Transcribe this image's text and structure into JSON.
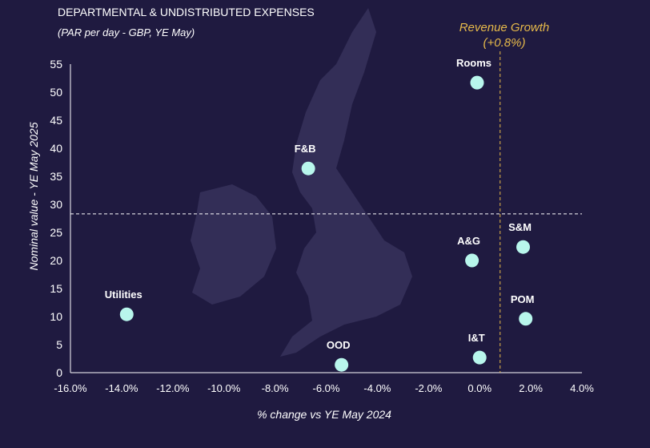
{
  "chart_data": {
    "type": "scatter",
    "title": "DEPARTMENTAL & UNDISTRIBUTED EXPENSES",
    "subtitle": "(PAR per day - GBP, YE May)",
    "xlabel": "% change vs YE May 2024",
    "ylabel": "Nominal value - YE May 2025",
    "xlim": [
      -16,
      4
    ],
    "ylim": [
      0,
      55
    ],
    "x_ticks": [
      -16,
      -14,
      -12,
      -10,
      -8,
      -6,
      -4,
      -2,
      0,
      2,
      4
    ],
    "x_tick_labels": [
      "-16.0%",
      "-14.0%",
      "-12.0%",
      "-10.0%",
      "-8.0%",
      "-6.0%",
      "-4.0%",
      "-2.0%",
      "0.0%",
      "2.0%",
      "4.0%"
    ],
    "y_ticks": [
      0,
      5,
      10,
      15,
      20,
      25,
      30,
      35,
      40,
      45,
      50,
      55
    ],
    "y_tick_labels": [
      "0",
      "5",
      "10",
      "15",
      "20",
      "25",
      "30",
      "35",
      "40",
      "45",
      "50",
      "55"
    ],
    "grid": false,
    "points": [
      {
        "label": "Rooms",
        "x": -0.1,
        "y": 51.7
      },
      {
        "label": "F&B",
        "x": -6.7,
        "y": 36.4
      },
      {
        "label": "S&M",
        "x": 1.7,
        "y": 22.4
      },
      {
        "label": "A&G",
        "x": -0.3,
        "y": 20.0
      },
      {
        "label": "POM",
        "x": 1.8,
        "y": 9.6
      },
      {
        "label": "Utilities",
        "x": -13.8,
        "y": 10.4
      },
      {
        "label": "I&T",
        "x": 0.0,
        "y": 2.7
      },
      {
        "label": "OOD",
        "x": -5.4,
        "y": 1.4
      }
    ],
    "reference_lines": {
      "horizontal_y": 28.3,
      "vertical_x": 0.8,
      "vertical_label": "Revenue Growth",
      "vertical_value_label": "(+0.8%)"
    },
    "colors": {
      "background": "#1f1a40",
      "point": "#b8f6ec",
      "accent": "#e6b94a",
      "text": "#ffffff",
      "map": "#37325c"
    }
  }
}
